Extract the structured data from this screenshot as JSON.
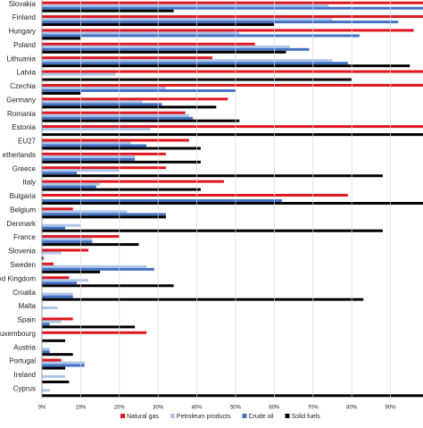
{
  "chart_data": {
    "type": "bar",
    "orientation": "horizontal",
    "categories": [
      "Slovakia",
      "Finland",
      "Hungary",
      "Poland",
      "Lithuania",
      "Latvia",
      "Czechia",
      "Germany",
      "Romania",
      "Estonia",
      "EU27",
      "etherlands",
      "Greece",
      "Italy",
      "Bulgaria",
      "Belgium",
      "Denmark",
      "France",
      "Slovenia",
      "Sweden",
      "ed Kingdom",
      "Croatia",
      "Malta",
      "Spain",
      "uxembourg",
      "Austria",
      "Portugal",
      "Ireland",
      "Cyprus"
    ],
    "series": [
      {
        "name": "Natural gas",
        "color": "#e0161e",
        "values": [
          100,
          100,
          96,
          55,
          44,
          100,
          100,
          48,
          37,
          100,
          38,
          32,
          32,
          47,
          79,
          8,
          0,
          20,
          12,
          3,
          7,
          0,
          0,
          8,
          27,
          0,
          5,
          0,
          0
        ]
      },
      {
        "name": "Petroleum products",
        "color": "#aec6e8",
        "values": [
          74,
          75,
          51,
          64,
          75,
          19,
          32,
          26,
          38,
          28,
          23,
          24,
          20,
          15,
          0,
          22,
          10,
          13,
          5,
          27,
          12,
          8,
          4,
          5,
          0,
          2,
          11,
          6,
          2
        ]
      },
      {
        "name": "Crude oil",
        "color": "#4472c4",
        "values": [
          100,
          92,
          82,
          69,
          79,
          0,
          50,
          31,
          39,
          0,
          27,
          24,
          9,
          14,
          62,
          32,
          6,
          13,
          0,
          29,
          9,
          8,
          0,
          2,
          0,
          2,
          11,
          0,
          0
        ]
      },
      {
        "name": "Solid fuels",
        "color": "#000000",
        "values": [
          34,
          60,
          10,
          63,
          95,
          80,
          10,
          45,
          51,
          100,
          41,
          41,
          88,
          41,
          100,
          32,
          88,
          25,
          0.4,
          15,
          34,
          83,
          0,
          24,
          6,
          8,
          6,
          7,
          100
        ]
      }
    ],
    "xlim": [
      0,
      98.4
    ],
    "xticks": [
      {
        "value": 0,
        "label": "0%"
      },
      {
        "value": 10,
        "label": "10%"
      },
      {
        "value": 20,
        "label": "20%"
      },
      {
        "value": 30,
        "label": "30%"
      },
      {
        "value": 40,
        "label": "40%"
      },
      {
        "value": 50,
        "label": "50%"
      },
      {
        "value": 60,
        "label": "60%"
      },
      {
        "value": 70,
        "label": "70%"
      },
      {
        "value": 80,
        "label": "80%"
      },
      {
        "value": 90,
        "label": "90%"
      }
    ],
    "grid": true,
    "legend": "bottom"
  }
}
